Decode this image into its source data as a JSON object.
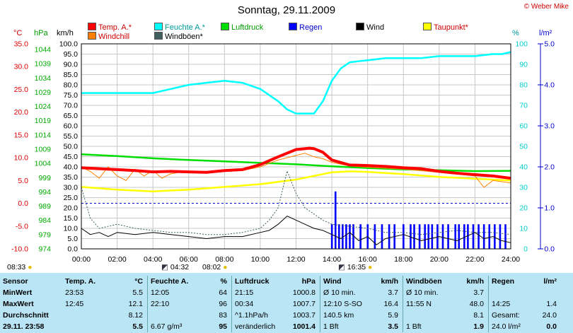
{
  "page": {
    "title": "Sonntag, 29.11.2009",
    "copyright": "© Weber Mike"
  },
  "legend": [
    {
      "label": "Temp. A.*",
      "color": "#ff0000"
    },
    {
      "label": "Feuchte A.*",
      "color": "#00ffff"
    },
    {
      "label": "Luftdruck",
      "color": "#00dd00"
    },
    {
      "label": "Regen",
      "color": "#0000ff"
    },
    {
      "label": "Wind",
      "color": "#000000"
    },
    {
      "label": "Taupunkt*",
      "color": "#ffff00"
    },
    {
      "label": "Windchill",
      "color": "#ff8000"
    },
    {
      "label": "Windböen*",
      "color": "#406060"
    }
  ],
  "units": {
    "temp": "°C",
    "pressure": "hPa",
    "wind": "km/h",
    "humidity": "%",
    "rain": "l/m²"
  },
  "sun": {
    "sunrise": "08:33",
    "moonset": "04:32",
    "sunset_ref": "08:02",
    "moonrise": "16:35"
  },
  "chart_data": {
    "type": "line",
    "title": "Sonntag, 29.11.2009",
    "x_ticks": [
      "00:00",
      "02:00",
      "04:00",
      "06:00",
      "08:00",
      "10:00",
      "12:00",
      "14:00",
      "16:00",
      "18:00",
      "20:00",
      "22:00",
      "24:00"
    ],
    "axes": {
      "temp_ticks": [
        "35.0",
        "30.0",
        "25.0",
        "20.0",
        "15.0",
        "10.0",
        "5.0",
        "0.0",
        "-5.0",
        "-10.0"
      ],
      "pressure_ticks": [
        "1044",
        "1039",
        "1034",
        "1029",
        "1024",
        "1019",
        "1014",
        "1009",
        "1004",
        "999",
        "994",
        "989",
        "984",
        "979",
        "974"
      ],
      "wind_ticks": [
        "100.0",
        "95.0",
        "90.0",
        "85.0",
        "80.0",
        "75.0",
        "70.0",
        "65.0",
        "60.0",
        "55.0",
        "50.0",
        "45.0",
        "40.0",
        "35.0",
        "30.0",
        "25.0",
        "20.0",
        "15.0",
        "10.0",
        "5.0",
        "0.0"
      ],
      "humidity_ticks": [
        "100",
        "90",
        "80",
        "70",
        "60",
        "50",
        "40",
        "30",
        "20",
        "10",
        "0"
      ],
      "rain_ticks": [
        "5.0",
        "4.0",
        "3.0",
        "2.0",
        "1.0",
        "0.0"
      ],
      "temp_range": [
        -10,
        35
      ],
      "humidity_range": [
        0,
        100
      ],
      "rain_range": [
        0,
        5
      ],
      "wind_range": [
        0,
        100
      ],
      "pressure_range": [
        974,
        1046
      ]
    },
    "series": [
      {
        "name": "Temp. A.*",
        "color": "#ff0000",
        "axis": "temp",
        "x": [
          0,
          1,
          2,
          3,
          4,
          5,
          6,
          7,
          8,
          9,
          10,
          11,
          12,
          12.75,
          13,
          13.5,
          14,
          15,
          16,
          17,
          18,
          19,
          20,
          21,
          22,
          23,
          24
        ],
        "y": [
          7.8,
          7.6,
          7.4,
          7.2,
          6.9,
          7.0,
          6.9,
          6.8,
          7.2,
          7.4,
          8.5,
          10.2,
          11.8,
          12.1,
          12.0,
          11.2,
          9.5,
          8.4,
          8.3,
          8.1,
          7.8,
          7.6,
          7.0,
          6.6,
          6.3,
          6.0,
          5.5
        ]
      },
      {
        "name": "Feuchte A.*",
        "color": "#00ffff",
        "axis": "humidity",
        "x": [
          0,
          1,
          2,
          3,
          4,
          5,
          6,
          7,
          8,
          9,
          10,
          11,
          11.5,
          12,
          13,
          13.5,
          14,
          14.5,
          15,
          16,
          17,
          18,
          19,
          20,
          21,
          22,
          23,
          23.5,
          24
        ],
        "y": [
          76,
          76,
          76,
          76,
          76,
          78,
          80,
          81,
          82,
          81,
          78,
          72,
          68,
          66,
          66,
          72,
          82,
          88,
          91,
          92,
          93,
          93,
          93,
          94,
          94,
          94,
          95,
          95,
          96
        ]
      },
      {
        "name": "Luftdruck",
        "color": "#00dd00",
        "axis": "pressure",
        "x": [
          0,
          2,
          4,
          6,
          8,
          10,
          12,
          14,
          16,
          18,
          20,
          22,
          24
        ],
        "y": [
          1007.2,
          1006.6,
          1005.8,
          1005.2,
          1004.7,
          1004.2,
          1003.7,
          1003.0,
          1002.4,
          1001.9,
          1001.6,
          1001.3,
          1001.4
        ]
      },
      {
        "name": "Taupunkt*",
        "color": "#ffff00",
        "axis": "temp",
        "x": [
          0,
          2,
          4,
          6,
          8,
          10,
          12,
          14,
          15,
          16,
          18,
          20,
          22,
          24
        ],
        "y": [
          3.6,
          3.0,
          2.6,
          3.0,
          3.6,
          4.2,
          5.2,
          6.8,
          7.0,
          6.9,
          6.4,
          5.8,
          5.4,
          5.0
        ]
      },
      {
        "name": "Windchill",
        "color": "#ff8000",
        "axis": "temp",
        "x": [
          0,
          0.5,
          1,
          1.5,
          2,
          2.5,
          3,
          3.5,
          4,
          4.5,
          5,
          5.5,
          6,
          7,
          8,
          9,
          10,
          11,
          12,
          12.5,
          13,
          13.5,
          14,
          15,
          16,
          18,
          20,
          22,
          22.5,
          23,
          24
        ],
        "y": [
          8.0,
          7.0,
          5.5,
          8.0,
          6.0,
          5.0,
          7.5,
          6.0,
          7.2,
          5.5,
          6.5,
          6.8,
          6.7,
          6.6,
          7.0,
          7.2,
          8.0,
          9.5,
          10.5,
          11.0,
          10.2,
          9.8,
          9.0,
          8.2,
          7.9,
          7.5,
          6.8,
          6.0,
          3.5,
          5.0,
          4.5
        ]
      },
      {
        "name": "Wind",
        "color": "#000000",
        "axis": "wind",
        "x": [
          0,
          0.5,
          1,
          1.5,
          2,
          3,
          4,
          5,
          6,
          7,
          8,
          9,
          10,
          10.5,
          11,
          11.5,
          12,
          12.5,
          13,
          13.5,
          14,
          14.5,
          15,
          15.5,
          16,
          16.5,
          17,
          18,
          19,
          20,
          21,
          22,
          22.5,
          23,
          23.5,
          24
        ],
        "y": [
          10,
          7,
          8,
          6,
          8,
          7,
          8,
          7,
          6,
          5,
          6,
          6,
          8,
          9,
          12,
          16,
          14,
          12,
          10,
          9,
          7,
          5,
          8,
          4,
          6,
          2,
          5,
          7,
          4,
          6,
          4,
          8,
          5,
          6,
          4,
          3
        ]
      },
      {
        "name": "Windböen*",
        "color": "#406060",
        "axis": "wind",
        "x": [
          0,
          0.5,
          1,
          2,
          3,
          4,
          5,
          6,
          7,
          8,
          9,
          10,
          10.5,
          11,
          11.5,
          12,
          12.5,
          13,
          13.5,
          14,
          15,
          16,
          17,
          18,
          19,
          20,
          21,
          22,
          23,
          24
        ],
        "y": [
          30,
          15,
          10,
          12,
          10,
          9,
          8,
          8,
          7,
          7,
          8,
          10,
          14,
          20,
          38,
          27,
          20,
          17,
          14,
          12,
          11,
          10,
          8,
          8,
          7,
          8,
          9,
          8,
          8,
          7
        ]
      }
    ],
    "rain_bars": {
      "name": "Regen",
      "color": "#0000ff",
      "axis": "rain",
      "x": [
        14.0,
        14.2,
        14.4,
        14.6,
        14.8,
        15.0,
        15.2,
        15.6,
        16.0,
        16.4,
        16.8,
        17.2,
        17.5,
        18.0,
        18.4,
        18.6,
        18.9,
        19.2,
        19.4,
        19.6,
        19.9,
        20.2,
        20.5,
        20.9,
        21.1,
        21.4,
        21.6,
        21.9,
        22.2,
        22.5,
        22.8,
        23.1,
        23.4,
        23.7
      ],
      "y": [
        0.6,
        1.4,
        0.6,
        0.6,
        0.6,
        0.6,
        0.6,
        0.6,
        0.6,
        0.6,
        0.6,
        0.6,
        0.6,
        0.6,
        0.6,
        0.6,
        0.6,
        0.6,
        0.6,
        0.6,
        0.6,
        0.6,
        0.6,
        0.6,
        0.6,
        0.6,
        0.6,
        0.6,
        0.6,
        0.6,
        0.6,
        0.6,
        0.6,
        0.6
      ]
    },
    "grid": true,
    "zero_line_dashed": true
  },
  "stats": {
    "row_labels": [
      "Sensor",
      "MinWert",
      "MaxWert",
      "Durchschnitt",
      "29.11. 23:58"
    ],
    "columns": [
      {
        "head": [
          "Temp. A.",
          "°C"
        ],
        "rows": [
          [
            "23:53",
            "5.5"
          ],
          [
            "12:45",
            "12.1"
          ],
          [
            "",
            "8.12"
          ],
          [
            "",
            "5.5"
          ]
        ]
      },
      {
        "head": [
          "Feuchte A.",
          "%"
        ],
        "rows": [
          [
            "12:05",
            "64"
          ],
          [
            "22:10",
            "96"
          ],
          [
            "",
            "83"
          ],
          [
            "6.67 g/m³",
            "95"
          ]
        ]
      },
      {
        "head": [
          "Luftdruck",
          "hPa"
        ],
        "rows": [
          [
            "21:15",
            "1000.8"
          ],
          [
            "00:34",
            "1007.7"
          ],
          [
            "^1.1hPa/h",
            "1003.7"
          ],
          [
            "veränderlich",
            "1001.4"
          ]
        ]
      },
      {
        "head": [
          "Wind",
          "km/h"
        ],
        "rows": [
          [
            "Ø 10 min.",
            "3.7"
          ],
          [
            "12:10   S-SO",
            "16.4"
          ],
          [
            "140.5 km",
            "5.9"
          ],
          [
            "1 Bft",
            "3.5"
          ]
        ]
      },
      {
        "head": [
          "Windböen",
          "km/h"
        ],
        "rows": [
          [
            "Ø 10 min.",
            "3.7"
          ],
          [
            "11:55    N",
            "48.0"
          ],
          [
            "",
            "8.1"
          ],
          [
            "1 Bft",
            "1.9"
          ]
        ]
      },
      {
        "head": [
          "Regen",
          "l/m²"
        ],
        "rows": [
          [
            "",
            ""
          ],
          [
            "14:25",
            "1.4"
          ],
          [
            "Gesamt:",
            "24.0"
          ],
          [
            "24.0 l/m²",
            "0.0"
          ]
        ]
      }
    ]
  }
}
